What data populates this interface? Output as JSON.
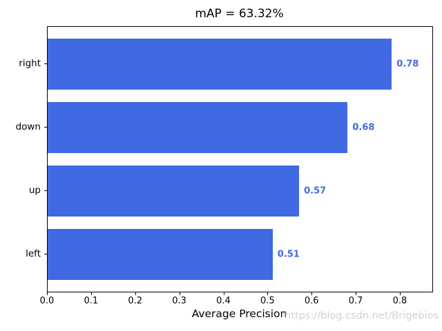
{
  "chart_data": {
    "type": "bar",
    "orientation": "horizontal",
    "title": "mAP = 63.32%",
    "xlabel": "Average Precision",
    "ylabel": "",
    "categories": [
      "right",
      "down",
      "up",
      "left"
    ],
    "values": [
      0.78,
      0.68,
      0.57,
      0.51
    ],
    "value_labels": [
      "0.78",
      "0.68",
      "0.57",
      "0.51"
    ],
    "x_tick_labels": [
      "0.0",
      "0.1",
      "0.2",
      "0.3",
      "0.4",
      "0.5",
      "0.6",
      "0.7",
      "0.8"
    ],
    "x_tick_values": [
      0.0,
      0.1,
      0.2,
      0.3,
      0.4,
      0.5,
      0.6,
      0.7,
      0.8
    ],
    "xlim": [
      0,
      0.872
    ],
    "grid": false,
    "legend_position": "none",
    "bar_color": "#4169e1",
    "value_label_color": "#4169e1",
    "text_color": "#000000"
  },
  "watermark": {
    "text": "https://blog.csdn.net/Brigebios",
    "color": "#ccd2d9"
  }
}
